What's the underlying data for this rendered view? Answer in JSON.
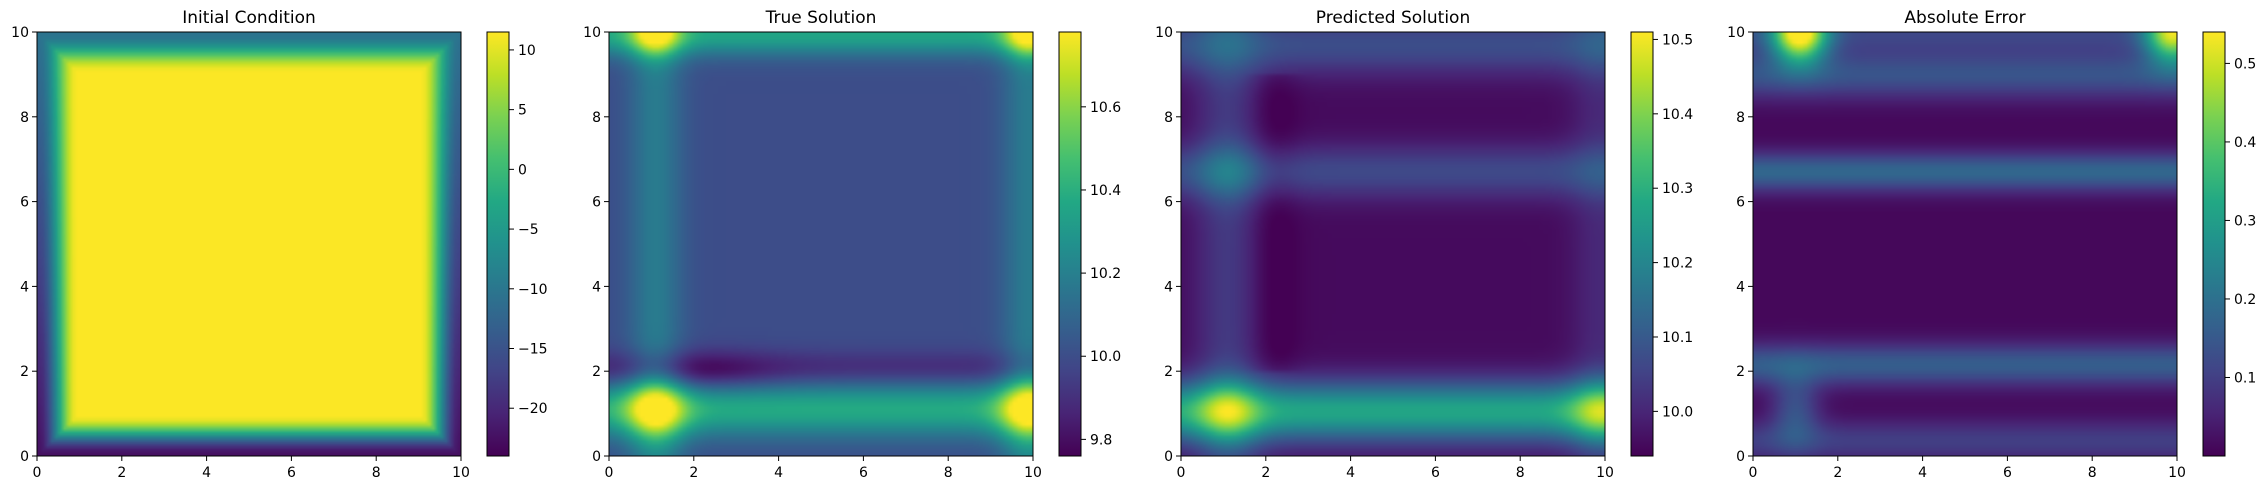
{
  "chart_data": [
    {
      "type": "heatmap",
      "title": "Initial Condition",
      "xlabel": "",
      "ylabel": "",
      "xlim": [
        0,
        10
      ],
      "ylim": [
        0,
        10
      ],
      "x_ticks": [
        "0",
        "2",
        "4",
        "6",
        "8",
        "10"
      ],
      "y_ticks": [
        "0",
        "2",
        "4",
        "6",
        "8",
        "10"
      ],
      "colormap": "viridis",
      "colorbar": {
        "min": -24,
        "max": 11.5,
        "ticks": [
          10,
          5,
          0,
          -5,
          -10,
          -15,
          -20
        ],
        "tick_labels": [
          "10",
          "5",
          "0",
          "−5",
          "−10",
          "−15",
          "−20"
        ]
      },
      "field": "initial"
    },
    {
      "type": "heatmap",
      "title": "True Solution",
      "xlabel": "",
      "ylabel": "",
      "xlim": [
        0,
        10
      ],
      "ylim": [
        0,
        10
      ],
      "x_ticks": [
        "0",
        "2",
        "4",
        "6",
        "8",
        "10"
      ],
      "y_ticks": [
        "0",
        "2",
        "4",
        "6",
        "8",
        "10"
      ],
      "colormap": "viridis",
      "colorbar": {
        "min": 9.76,
        "max": 10.78,
        "ticks": [
          10.6,
          10.4,
          10.2,
          10.0,
          9.8
        ],
        "tick_labels": [
          "10.6",
          "10.4",
          "10.2",
          "10.0",
          "9.8"
        ]
      },
      "field": "true"
    },
    {
      "type": "heatmap",
      "title": "Predicted Solution",
      "xlabel": "",
      "ylabel": "",
      "xlim": [
        0,
        10
      ],
      "ylim": [
        0,
        10
      ],
      "x_ticks": [
        "0",
        "2",
        "4",
        "6",
        "8",
        "10"
      ],
      "y_ticks": [
        "0",
        "2",
        "4",
        "6",
        "8",
        "10"
      ],
      "colormap": "viridis",
      "colorbar": {
        "min": 9.94,
        "max": 10.51,
        "ticks": [
          10.5,
          10.4,
          10.3,
          10.2,
          10.1,
          10.0
        ],
        "tick_labels": [
          "10.5",
          "10.4",
          "10.3",
          "10.2",
          "10.1",
          "10.0"
        ]
      },
      "field": "predicted"
    },
    {
      "type": "heatmap",
      "title": "Absolute Error",
      "xlabel": "",
      "ylabel": "",
      "xlim": [
        0,
        10
      ],
      "ylim": [
        0,
        10
      ],
      "x_ticks": [
        "0",
        "2",
        "4",
        "6",
        "8",
        "10"
      ],
      "y_ticks": [
        "0",
        "2",
        "4",
        "6",
        "8",
        "10"
      ],
      "colormap": "viridis",
      "colorbar": {
        "min": 0.0,
        "max": 0.54,
        "ticks": [
          0.5,
          0.4,
          0.3,
          0.2,
          0.1
        ],
        "tick_labels": [
          "0.5",
          "0.4",
          "0.3",
          "0.2",
          "0.1"
        ]
      },
      "field": "error"
    }
  ]
}
